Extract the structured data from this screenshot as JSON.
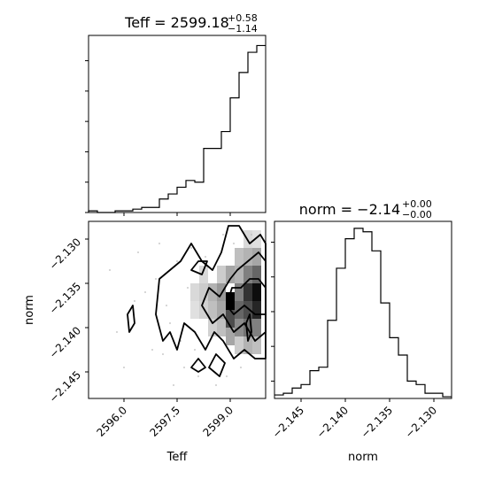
{
  "chart_data": [
    {
      "type": "bar",
      "panel": "Teff marginal histogram",
      "title": {
        "main": "Teff = 2599.18",
        "sup": "+0.58",
        "sub": "−1.14"
      },
      "bins": [
        2595.0,
        2595.25,
        2595.5,
        2595.75,
        2596.0,
        2596.25,
        2596.5,
        2596.75,
        2597.0,
        2597.25,
        2597.5,
        2597.75,
        2598.0,
        2598.25,
        2598.5,
        2598.75,
        2599.0,
        2599.25,
        2599.5,
        2599.75,
        2600.0
      ],
      "counts": [
        1,
        0,
        0,
        1,
        1,
        2,
        3,
        3,
        8,
        11,
        15,
        19,
        18,
        38,
        38,
        48,
        68,
        83,
        95,
        99
      ],
      "ylim": [
        0,
        105
      ],
      "xlim": [
        2595.0,
        2600.0
      ]
    },
    {
      "type": "bar",
      "panel": "norm marginal histogram",
      "title": {
        "main": "norm = −2.14",
        "sup": "+0.00",
        "sub": "−0.00"
      },
      "bins": [
        -2.148,
        -2.147,
        -2.146,
        -2.145,
        -2.144,
        -2.143,
        -2.142,
        -2.141,
        -2.14,
        -2.139,
        -2.138,
        -2.137,
        -2.136,
        -2.135,
        -2.134,
        -2.133,
        -2.132,
        -2.131,
        -2.13,
        -2.129,
        -2.128
      ],
      "counts": [
        2,
        3,
        6,
        8,
        16,
        18,
        45,
        75,
        92,
        98,
        96,
        85,
        55,
        35,
        25,
        10,
        8,
        3,
        3,
        1
      ],
      "ylim": [
        0,
        102
      ],
      "xlim": [
        -2.148,
        -2.128
      ],
      "xticks": [
        -2.145,
        -2.14,
        -2.135,
        -2.13
      ],
      "xtick_labels": [
        "−2.145",
        "−2.140",
        "−2.135",
        "−2.130"
      ],
      "xlabel": "norm"
    },
    {
      "type": "scatter",
      "panel": "Teff vs norm 2D density",
      "xlabel": "Teff",
      "ylabel": "norm",
      "xlim": [
        2595.0,
        2600.0
      ],
      "ylim": [
        -2.148,
        -2.128
      ],
      "xticks": [
        2596.0,
        2597.5,
        2599.0
      ],
      "xtick_labels": [
        "2596.0",
        "2597.5",
        "2599.0"
      ],
      "yticks": [
        -2.13,
        -2.135,
        -2.14,
        -2.145
      ],
      "ytick_labels": [
        "−2.130",
        "−2.135",
        "−2.140",
        "−2.145"
      ],
      "density_cells": [
        {
          "x": 2599.75,
          "y": -2.136,
          "v": 0.95
        },
        {
          "x": 2599.5,
          "y": -2.136,
          "v": 0.8
        },
        {
          "x": 2599.25,
          "y": -2.138,
          "v": 0.6
        },
        {
          "x": 2599.0,
          "y": -2.137,
          "v": 1.0
        },
        {
          "x": 2599.75,
          "y": -2.138,
          "v": 0.85
        },
        {
          "x": 2599.5,
          "y": -2.138,
          "v": 0.7
        },
        {
          "x": 2599.75,
          "y": -2.134,
          "v": 0.6
        },
        {
          "x": 2599.5,
          "y": -2.134,
          "v": 0.5
        },
        {
          "x": 2599.25,
          "y": -2.136,
          "v": 0.5
        },
        {
          "x": 2599.0,
          "y": -2.139,
          "v": 0.7
        },
        {
          "x": 2599.25,
          "y": -2.14,
          "v": 0.45
        },
        {
          "x": 2599.5,
          "y": -2.14,
          "v": 0.55
        },
        {
          "x": 2599.75,
          "y": -2.14,
          "v": 0.5
        },
        {
          "x": 2598.75,
          "y": -2.136,
          "v": 0.4
        },
        {
          "x": 2598.75,
          "y": -2.138,
          "v": 0.35
        },
        {
          "x": 2598.5,
          "y": -2.138,
          "v": 0.25
        },
        {
          "x": 2598.5,
          "y": -2.136,
          "v": 0.3
        },
        {
          "x": 2599.0,
          "y": -2.134,
          "v": 0.35
        },
        {
          "x": 2599.25,
          "y": -2.134,
          "v": 0.3
        },
        {
          "x": 2599.75,
          "y": -2.132,
          "v": 0.35
        },
        {
          "x": 2599.5,
          "y": -2.132,
          "v": 0.3
        },
        {
          "x": 2599.25,
          "y": -2.132,
          "v": 0.25
        },
        {
          "x": 2598.25,
          "y": -2.136,
          "v": 0.2
        },
        {
          "x": 2598.25,
          "y": -2.138,
          "v": 0.18
        },
        {
          "x": 2598.0,
          "y": -2.136,
          "v": 0.15
        },
        {
          "x": 2599.0,
          "y": -2.141,
          "v": 0.35
        },
        {
          "x": 2599.5,
          "y": -2.142,
          "v": 0.3
        },
        {
          "x": 2599.75,
          "y": -2.142,
          "v": 0.25
        },
        {
          "x": 2598.75,
          "y": -2.14,
          "v": 0.25
        },
        {
          "x": 2598.5,
          "y": -2.14,
          "v": 0.18
        },
        {
          "x": 2598.25,
          "y": -2.134,
          "v": 0.15
        },
        {
          "x": 2598.75,
          "y": -2.134,
          "v": 0.2
        },
        {
          "x": 2599.5,
          "y": -2.13,
          "v": 0.15
        },
        {
          "x": 2599.75,
          "y": -2.13,
          "v": 0.12
        },
        {
          "x": 2598.0,
          "y": -2.138,
          "v": 0.12
        },
        {
          "x": 2599.25,
          "y": -2.142,
          "v": 0.2
        }
      ],
      "points": [
        {
          "x": 2595.6,
          "y": -2.1335
        },
        {
          "x": 2595.8,
          "y": -2.1405
        },
        {
          "x": 2596.3,
          "y": -2.137
        },
        {
          "x": 2596.6,
          "y": -2.136
        },
        {
          "x": 2596.9,
          "y": -2.1345
        },
        {
          "x": 2597.1,
          "y": -2.143
        },
        {
          "x": 2597.3,
          "y": -2.1395
        },
        {
          "x": 2597.5,
          "y": -2.1325
        },
        {
          "x": 2597.7,
          "y": -2.1445
        },
        {
          "x": 2597.9,
          "y": -2.131
        },
        {
          "x": 2598.1,
          "y": -2.1455
        },
        {
          "x": 2598.3,
          "y": -2.132
        },
        {
          "x": 2596.0,
          "y": -2.1445
        },
        {
          "x": 2596.8,
          "y": -2.1425
        },
        {
          "x": 2597.4,
          "y": -2.1465
        },
        {
          "x": 2598.6,
          "y": -2.1465
        },
        {
          "x": 2598.9,
          "y": -2.1455
        },
        {
          "x": 2599.3,
          "y": -2.1445
        },
        {
          "x": 2599.6,
          "y": -2.1295
        },
        {
          "x": 2599.1,
          "y": -2.1305
        },
        {
          "x": 2598.8,
          "y": -2.1295
        },
        {
          "x": 2596.4,
          "y": -2.1315
        },
        {
          "x": 2597.0,
          "y": -2.1305
        },
        {
          "x": 2597.6,
          "y": -2.1415
        },
        {
          "x": 2598.0,
          "y": -2.1425
        },
        {
          "x": 2597.8,
          "y": -2.1355
        },
        {
          "x": 2597.2,
          "y": -2.1375
        }
      ],
      "contours": [
        [
          [
            2596.9,
            -2.1385
          ],
          [
            2597.0,
            -2.1345
          ],
          [
            2597.3,
            -2.1335
          ],
          [
            2597.6,
            -2.1325
          ],
          [
            2597.9,
            -2.1305
          ],
          [
            2598.2,
            -2.1325
          ],
          [
            2598.5,
            -2.1335
          ],
          [
            2598.75,
            -2.1315
          ],
          [
            2598.95,
            -2.1285
          ],
          [
            2599.25,
            -2.1285
          ],
          [
            2599.55,
            -2.1305
          ],
          [
            2599.85,
            -2.1295
          ],
          [
            2600.0,
            -2.1305
          ],
          [
            2600.0,
            -2.1435
          ],
          [
            2599.7,
            -2.1435
          ],
          [
            2599.4,
            -2.1425
          ],
          [
            2599.1,
            -2.1435
          ],
          [
            2598.8,
            -2.1415
          ],
          [
            2598.55,
            -2.1405
          ],
          [
            2598.3,
            -2.1425
          ],
          [
            2598.0,
            -2.1405
          ],
          [
            2597.7,
            -2.1395
          ],
          [
            2597.5,
            -2.1425
          ],
          [
            2597.3,
            -2.1405
          ],
          [
            2597.1,
            -2.1415
          ],
          [
            2596.9,
            -2.1385
          ]
        ],
        [
          [
            2598.2,
            -2.1375
          ],
          [
            2598.4,
            -2.1355
          ],
          [
            2598.7,
            -2.1365
          ],
          [
            2599.0,
            -2.1345
          ],
          [
            2599.2,
            -2.1335
          ],
          [
            2599.5,
            -2.1325
          ],
          [
            2599.8,
            -2.1315
          ],
          [
            2600.0,
            -2.1325
          ],
          [
            2600.0,
            -2.1405
          ],
          [
            2599.7,
            -2.1415
          ],
          [
            2599.4,
            -2.1395
          ],
          [
            2599.1,
            -2.1405
          ],
          [
            2598.8,
            -2.1385
          ],
          [
            2598.5,
            -2.1395
          ],
          [
            2598.2,
            -2.1375
          ]
        ],
        [
          [
            2598.9,
            -2.1375
          ],
          [
            2599.05,
            -2.1355
          ],
          [
            2599.3,
            -2.1355
          ],
          [
            2599.55,
            -2.1345
          ],
          [
            2599.8,
            -2.1345
          ],
          [
            2600.0,
            -2.1355
          ],
          [
            2600.0,
            -2.1385
          ],
          [
            2599.7,
            -2.1385
          ],
          [
            2599.4,
            -2.1375
          ],
          [
            2599.1,
            -2.1385
          ],
          [
            2598.9,
            -2.1375
          ]
        ],
        [
          [
            2596.1,
            -2.1385
          ],
          [
            2596.25,
            -2.1375
          ],
          [
            2596.3,
            -2.1395
          ],
          [
            2596.15,
            -2.1405
          ],
          [
            2596.1,
            -2.1385
          ]
        ],
        [
          [
            2597.9,
            -2.1335
          ],
          [
            2598.1,
            -2.1325
          ],
          [
            2598.35,
            -2.1325
          ],
          [
            2598.2,
            -2.134
          ],
          [
            2597.9,
            -2.1335
          ]
        ],
        [
          [
            2599.45,
            -2.1395
          ],
          [
            2599.55,
            -2.1385
          ],
          [
            2599.6,
            -2.1405
          ],
          [
            2599.5,
            -2.1415
          ],
          [
            2599.45,
            -2.1395
          ]
        ],
        [
          [
            2597.9,
            -2.1445
          ],
          [
            2598.1,
            -2.1435
          ],
          [
            2598.3,
            -2.1445
          ],
          [
            2598.1,
            -2.145
          ],
          [
            2597.9,
            -2.1445
          ]
        ],
        [
          [
            2598.4,
            -2.1445
          ],
          [
            2598.6,
            -2.143
          ],
          [
            2598.85,
            -2.144
          ],
          [
            2598.7,
            -2.1455
          ],
          [
            2598.4,
            -2.1445
          ]
        ]
      ]
    }
  ]
}
